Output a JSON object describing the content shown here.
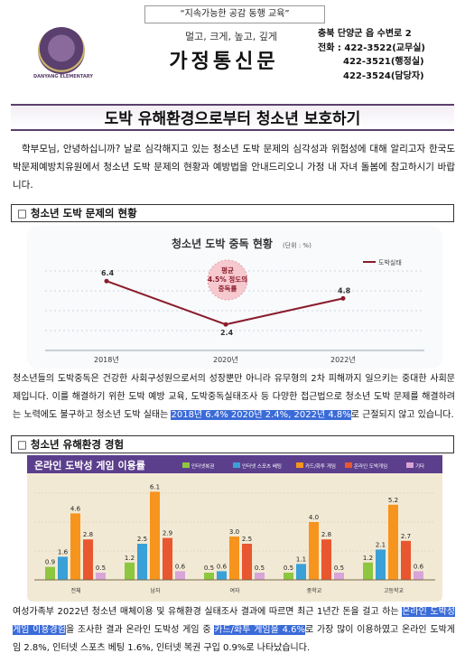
{
  "header": {
    "motto": "“지속가능한 공감 동행 교육”",
    "tagline": "멀고, 크게, 높고, 깊게",
    "title": "가정통신문",
    "logo_text": "DANYANG ELEMENTARY",
    "address": [
      "충북 단양군 읍 수변로 2",
      "전화 : 422-3522(교무실)",
      "422-3521(행정실)",
      "422-3524(담당자)"
    ]
  },
  "headline": "도박 유해환경으로부터 청소년 보호하기",
  "intro": "학부모님, 안녕하십니까? 날로 심각해지고 있는 청소년 도박 문제의 심각성과 위험성에 대해 알리고자 한국도박문제예방치유원에서 청소년 도박 문제의 현황과 예방법을 안내드리오니 가정 내 자녀 돌봄에 참고하시기 바랍니다.",
  "section1": {
    "title": "□ 청소년 도박 문제의 현황"
  },
  "section2": {
    "title": "□ 청소년 유해환경 경험"
  },
  "para1": {
    "before": "청소년들의 도박중독은 건강한 사회구성원으로서의 성장뿐만 아니라 유무형의 2차 피해까지 일으키는 중대한 사회문제입니다. 이를 해결하기 위한 도박 예방 교육, 도박중독실태조사 등 다양한 접근법으로 청소년 도박 문제를 해결하려는 노력에도 불구하고 청소년 도박 실태는 ",
    "highlight": "2018년 6.4% 2020년 2.4%, 2022년 4.8%",
    "after": "로 근절되지 않고 있습니다."
  },
  "para2": {
    "p1": "여성가족부 2022년 청소년 매체이용 및 유해환경 실태조사 결과에 따르면 최근 1년간 돈을 걸고 하는 ",
    "h1": "온라인 도박성 게임 이용경험",
    "p2": "을 조사한 결과 온라인 도박성 게임 중 ",
    "h2": "카드/화투 게임을 4.6%",
    "p3": "로 가장 많이 이용하였고 온라인 도박게임 2.8%, 인터넷 스포츠 베팅 1.6%, 인터넷 복권 구입 0.9%로 나타났습니다."
  },
  "chart_data": [
    {
      "type": "line",
      "title": "청소년 도박 중독 현황",
      "unit": "(단위 : %)",
      "legend": "도박실태",
      "x": [
        "2018년",
        "2020년",
        "2022년"
      ],
      "values": [
        6.4,
        2.4,
        4.8
      ],
      "value_labels": [
        "6.4",
        "2.4",
        "4.8"
      ],
      "badge": [
        "평균",
        "4.5% 정도의",
        "중독률"
      ],
      "ylim": [
        0,
        8
      ],
      "color": "#8a1c2b"
    },
    {
      "type": "bar",
      "title": "온라인 도박성 게임 이용률",
      "categories": [
        "전체",
        "남자",
        "여자",
        "중학교",
        "고등학교"
      ],
      "series": [
        {
          "name": "인터넷복권",
          "color": "#8dc63f",
          "values": [
            0.9,
            1.2,
            0.5,
            0.5,
            1.2
          ]
        },
        {
          "name": "인터넷 스포츠 베팅",
          "color": "#3aa0d8",
          "values": [
            1.6,
            2.5,
            0.6,
            1.1,
            2.1
          ]
        },
        {
          "name": "카드/화투 게임",
          "color": "#f7941d",
          "values": [
            4.6,
            6.1,
            3.0,
            4.0,
            5.2
          ]
        },
        {
          "name": "온라인 도박게임",
          "color": "#e8572f",
          "values": [
            2.8,
            2.9,
            2.5,
            2.8,
            2.7
          ]
        },
        {
          "name": "기타",
          "color": "#d9a4d8",
          "values": [
            0.5,
            0.6,
            0.5,
            0.5,
            0.6
          ]
        }
      ],
      "value_labels": [
        [
          "0.9",
          "1.6",
          "4.6",
          "2.8",
          "0.5"
        ],
        [
          "1.2",
          "2.5",
          "6.1",
          "2.9",
          "0.6"
        ],
        [
          "0.5",
          "0.6",
          "3.0",
          "2.5",
          "0.5"
        ],
        [
          "0.5",
          "1.1",
          "4.0",
          "2.8",
          "0.5"
        ],
        [
          "1.2",
          "2.1",
          "5.2",
          "2.7",
          "0.6"
        ]
      ],
      "ylim": [
        0,
        7
      ]
    }
  ]
}
